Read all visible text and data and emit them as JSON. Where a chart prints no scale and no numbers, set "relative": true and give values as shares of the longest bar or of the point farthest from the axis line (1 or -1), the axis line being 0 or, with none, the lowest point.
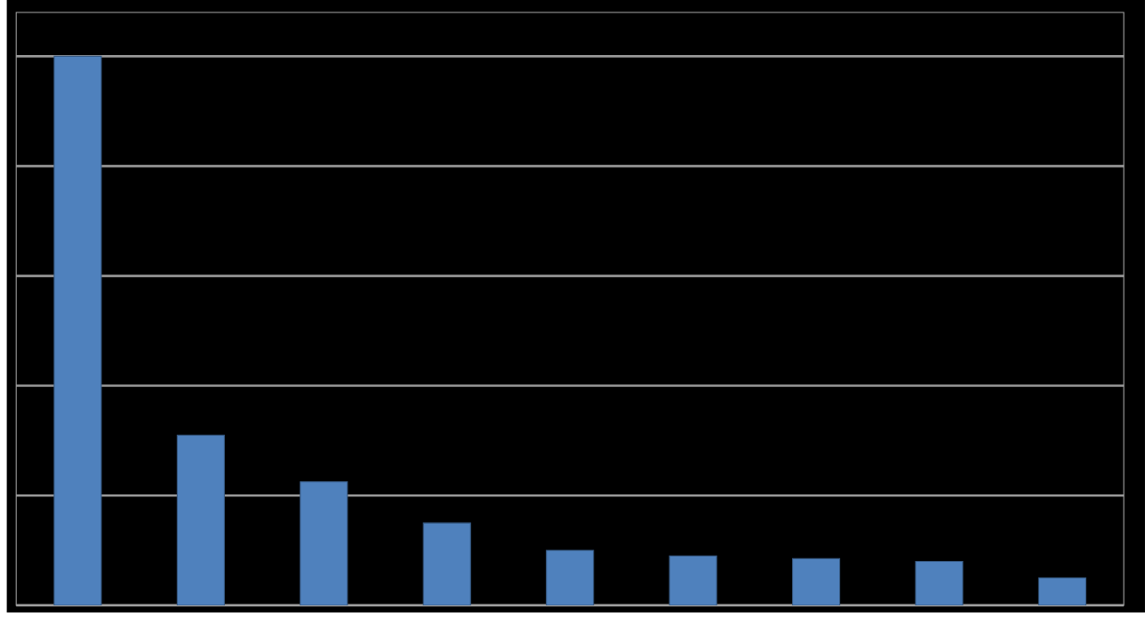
{
  "chart_data": {
    "type": "bar",
    "relative": true,
    "grid": true,
    "color": "#4f81bd",
    "categories": [
      null,
      null,
      null,
      null,
      null,
      null,
      null,
      null,
      null
    ],
    "values": [
      1,
      0.31,
      0.225,
      0.15,
      0.1,
      0.09,
      0.085,
      0.08,
      0.05
    ]
  }
}
